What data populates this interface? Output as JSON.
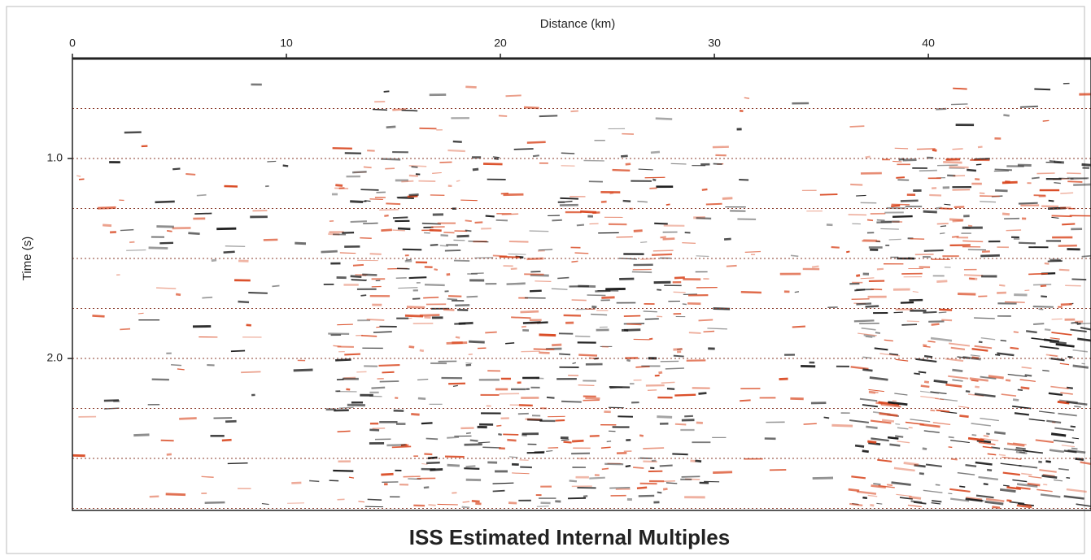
{
  "chart_data": {
    "type": "seismic",
    "title": "ISS Estimated Internal Multiples",
    "xlabel": "Distance (km)",
    "ylabel": "Time (s)",
    "xlim": [
      0,
      47.6
    ],
    "xticks": [
      0,
      10,
      20,
      30,
      40
    ],
    "ylim": [
      0.5,
      2.76
    ],
    "yticks": [
      {
        "value": 1,
        "label": "1.0"
      },
      {
        "value": 2,
        "label": "2.0"
      }
    ],
    "ygrid": [
      0.75,
      1,
      1.25,
      1.5,
      1.75,
      2,
      2.25,
      2.5,
      2.75
    ],
    "y_inverted": true,
    "colors": [
      "#111111",
      "#d8441c"
    ]
  }
}
